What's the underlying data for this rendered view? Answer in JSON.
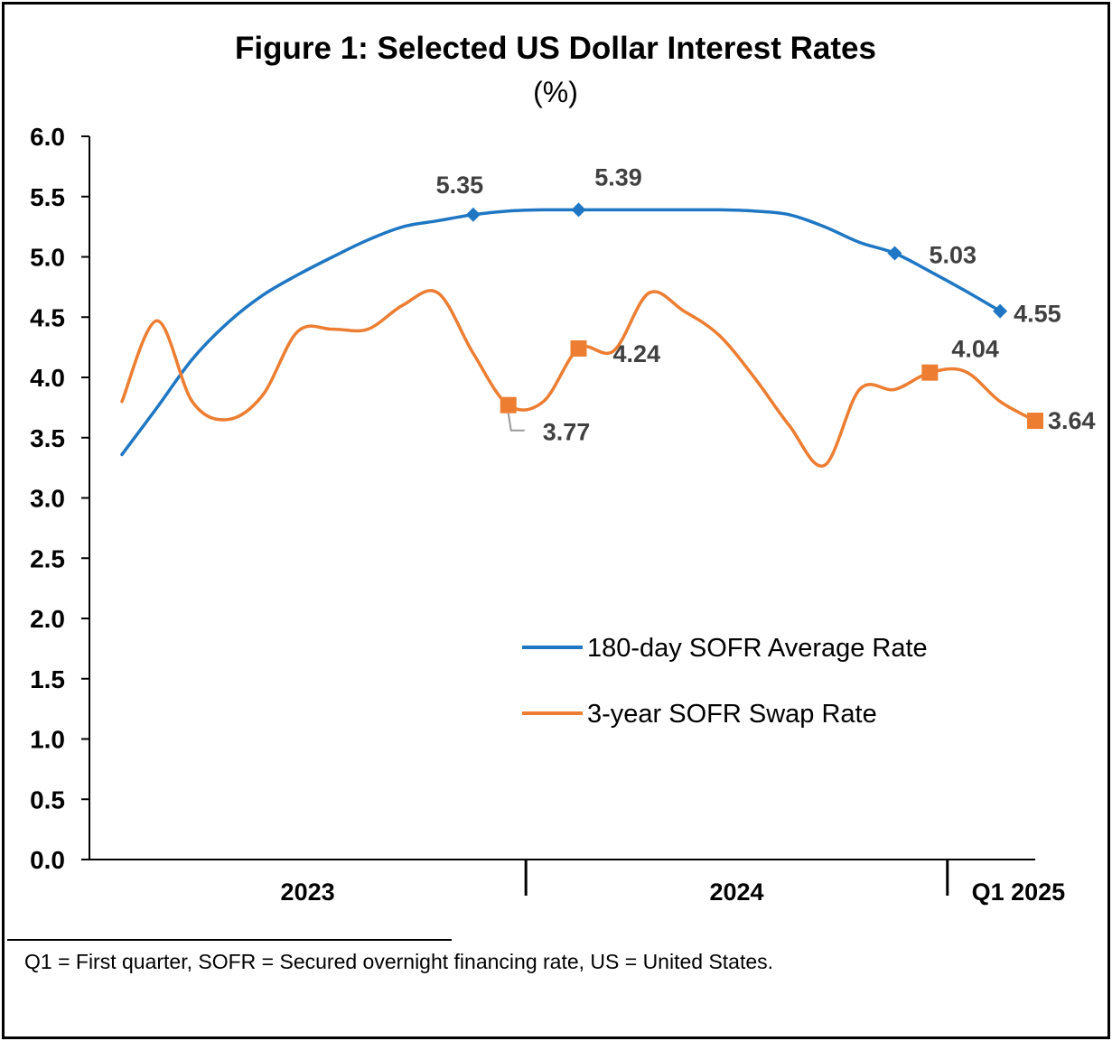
{
  "chart_data": {
    "type": "line",
    "title": "Figure 1: Selected US Dollar Interest Rates",
    "subtitle": "(%)",
    "ylim": [
      0,
      6
    ],
    "yticks": [
      "0.0",
      "0.5",
      "1.0",
      "1.5",
      "2.0",
      "2.5",
      "3.0",
      "3.5",
      "4.0",
      "4.5",
      "5.0",
      "5.5",
      "6.0"
    ],
    "x_range": [
      0,
      27
    ],
    "x_groups": [
      {
        "label": "2023",
        "start": 0,
        "end": 12
      },
      {
        "label": "2024",
        "start": 12,
        "end": 24
      },
      {
        "label": "Q1 2025",
        "start": 24,
        "end": 27
      }
    ],
    "series": [
      {
        "name": "180-day SOFR Average Rate",
        "color": "#1F77C4",
        "marker": "diamond",
        "points": [
          [
            1,
            3.36
          ],
          [
            2,
            3.75
          ],
          [
            3,
            4.15
          ],
          [
            4,
            4.45
          ],
          [
            5,
            4.68
          ],
          [
            6,
            4.85
          ],
          [
            7,
            5.0
          ],
          [
            8,
            5.14
          ],
          [
            9,
            5.25
          ],
          [
            10,
            5.3
          ],
          [
            11,
            5.35
          ],
          [
            12,
            5.38
          ],
          [
            13,
            5.39
          ],
          [
            14,
            5.39
          ],
          [
            15,
            5.39
          ],
          [
            16,
            5.39
          ],
          [
            17,
            5.39
          ],
          [
            18,
            5.39
          ],
          [
            19,
            5.38
          ],
          [
            20,
            5.35
          ],
          [
            21,
            5.25
          ],
          [
            22,
            5.12
          ],
          [
            23,
            5.03
          ],
          [
            24,
            4.88
          ],
          [
            25,
            4.72
          ],
          [
            26,
            4.55
          ]
        ],
        "labels": [
          {
            "x": 11,
            "value": "5.35"
          },
          {
            "x": 14,
            "value": "5.39"
          },
          {
            "x": 23,
            "value": "5.03"
          },
          {
            "x": 26,
            "value": "4.55"
          }
        ]
      },
      {
        "name": "3-year SOFR Swap Rate",
        "color": "#ED7D31",
        "marker": "square",
        "points": [
          [
            1,
            3.8
          ],
          [
            2,
            4.47
          ],
          [
            3,
            3.8
          ],
          [
            4,
            3.65
          ],
          [
            5,
            3.85
          ],
          [
            6,
            4.38
          ],
          [
            7,
            4.4
          ],
          [
            8,
            4.4
          ],
          [
            9,
            4.6
          ],
          [
            10,
            4.7
          ],
          [
            11,
            4.2
          ],
          [
            12,
            3.77
          ],
          [
            13,
            3.8
          ],
          [
            14,
            4.24
          ],
          [
            15,
            4.22
          ],
          [
            16,
            4.7
          ],
          [
            17,
            4.55
          ],
          [
            18,
            4.35
          ],
          [
            19,
            4.0
          ],
          [
            20,
            3.6
          ],
          [
            21,
            3.27
          ],
          [
            22,
            3.9
          ],
          [
            23,
            3.9
          ],
          [
            24,
            4.04
          ],
          [
            25,
            4.05
          ],
          [
            26,
            3.8
          ],
          [
            27,
            3.64
          ]
        ],
        "labels": [
          {
            "x": 12,
            "value": "3.77"
          },
          {
            "x": 14,
            "value": "4.24"
          },
          {
            "x": 24,
            "value": "4.04"
          },
          {
            "x": 27,
            "value": "3.64"
          }
        ]
      }
    ],
    "legend_position": "lower-right",
    "gridlines": false
  },
  "footnote": "Q1 = First quarter, SOFR = Secured overnight financing rate, US = United States."
}
